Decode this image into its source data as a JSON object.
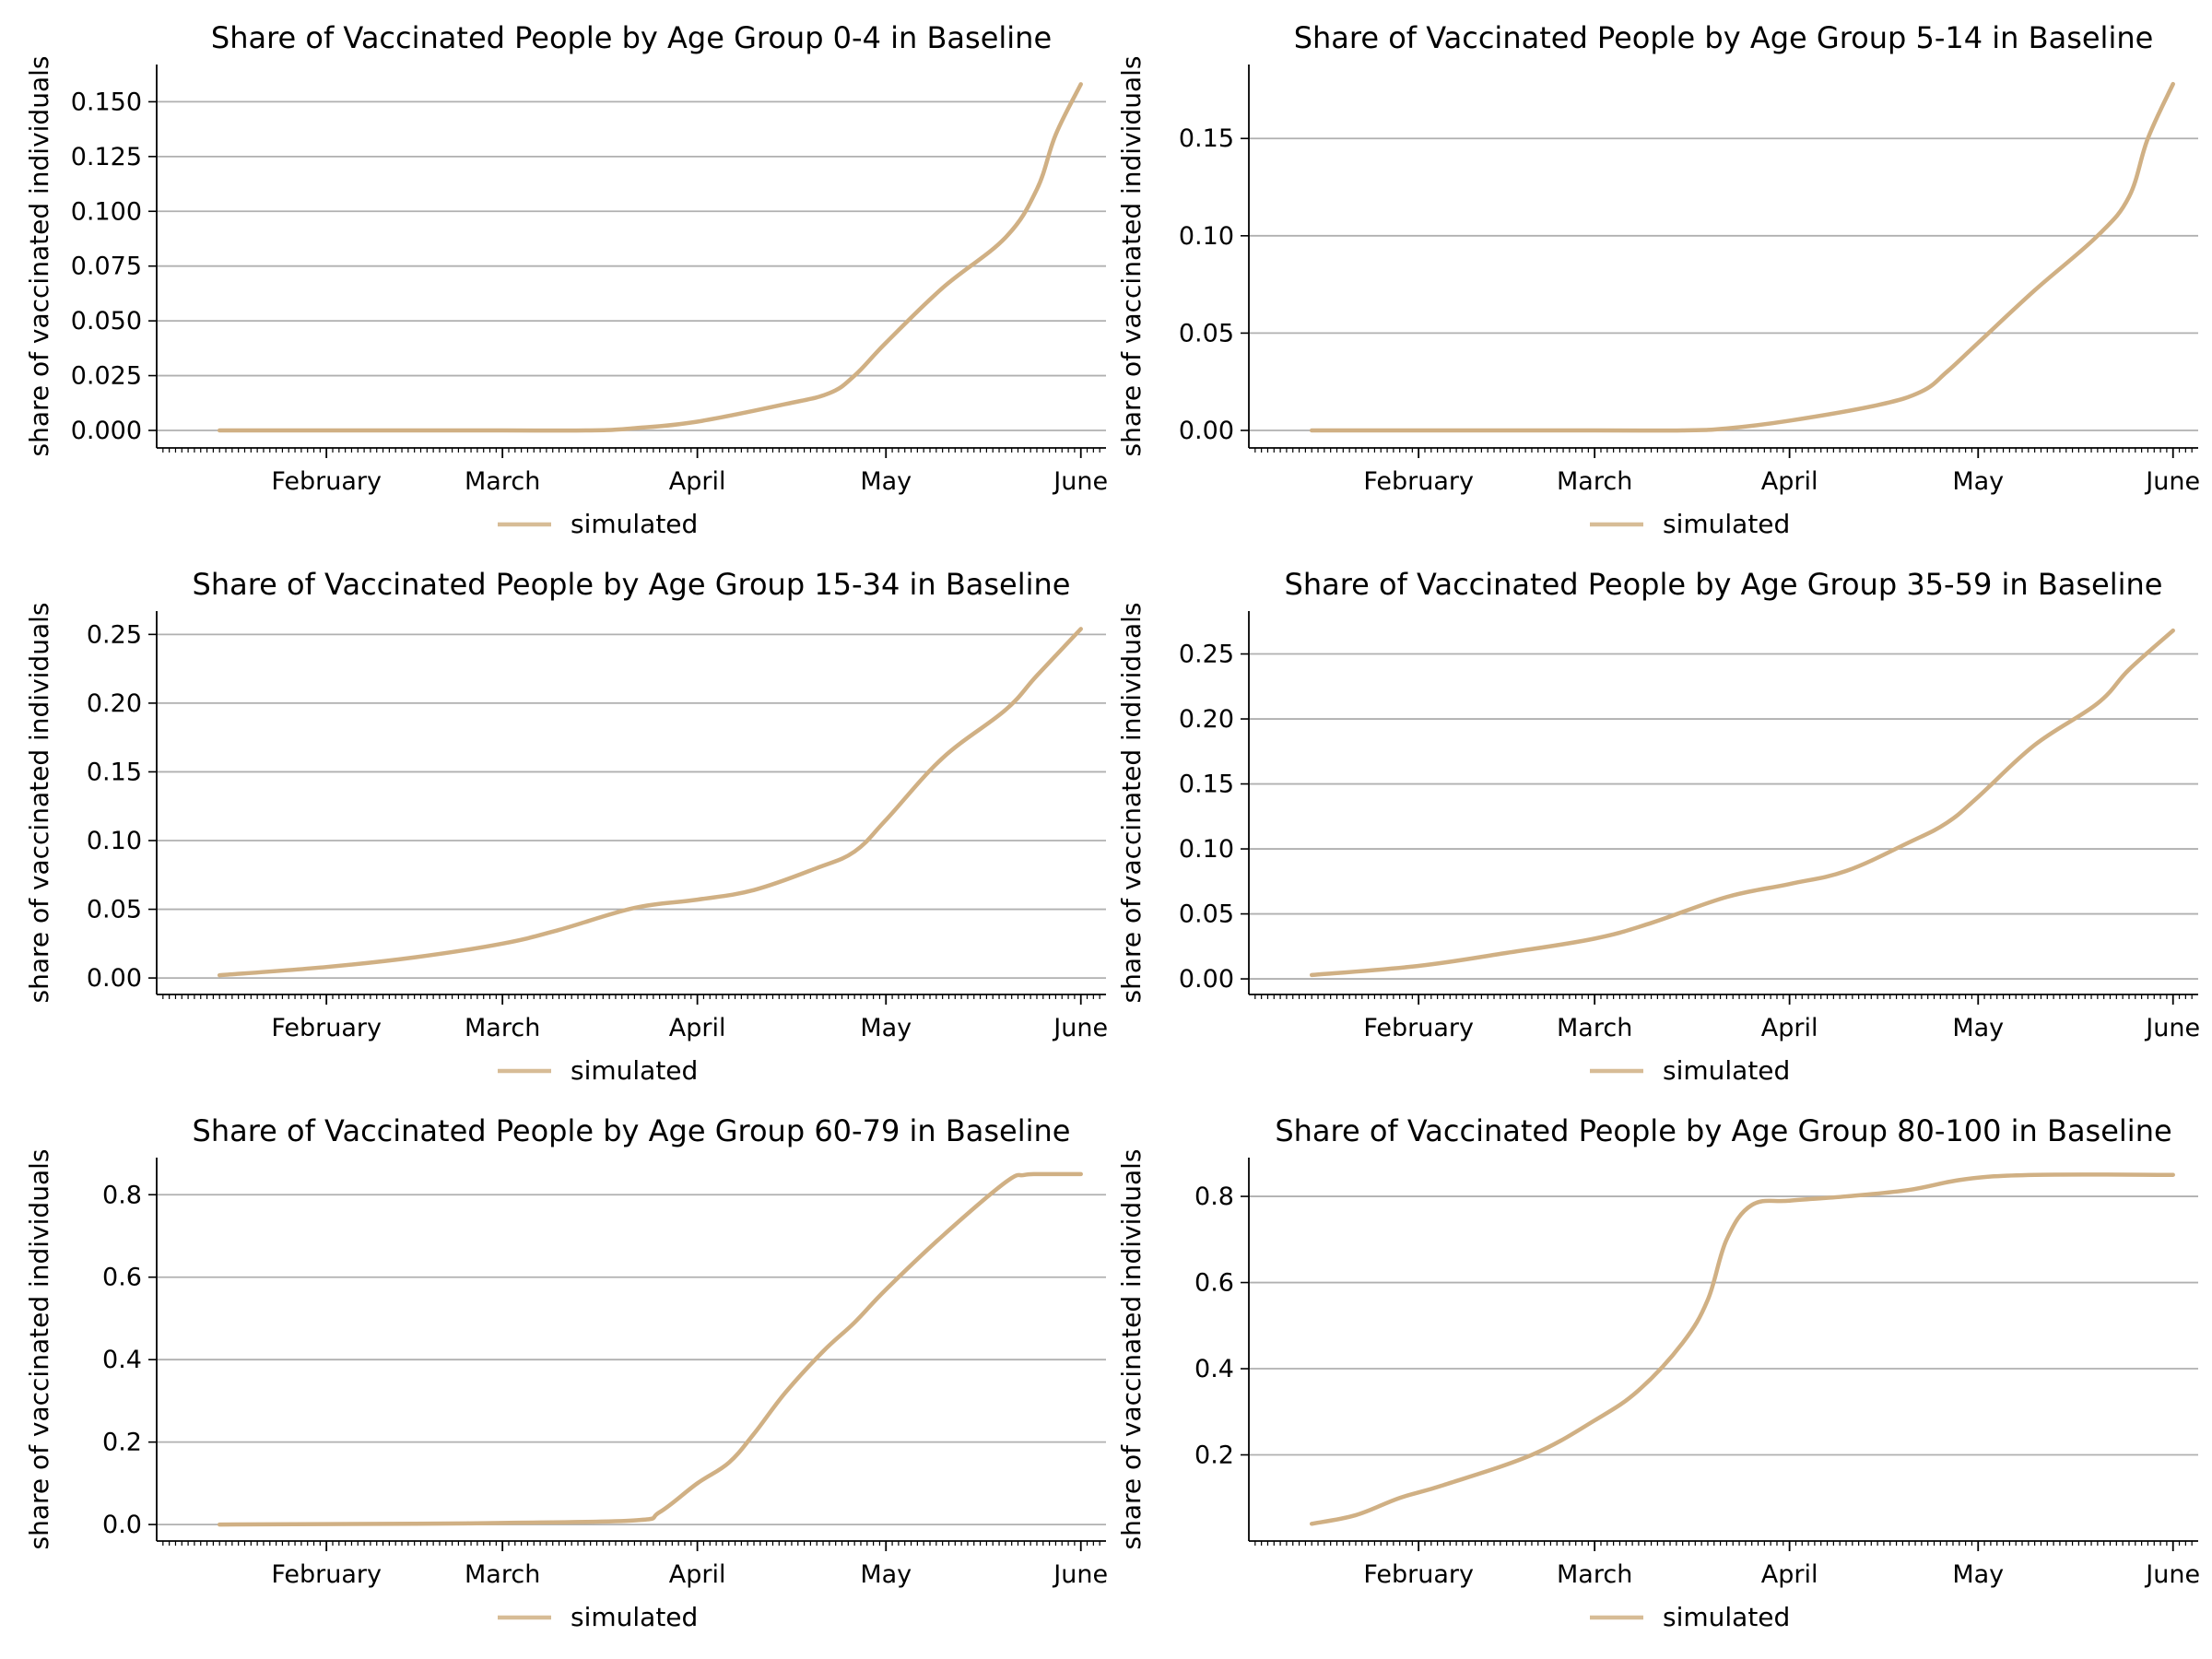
{
  "figure": {
    "layout": "3 rows x 2 columns"
  },
  "chart_data": [
    {
      "type": "line",
      "title": "Share of Vaccinated People by Age Group 0-4 in  Baseline",
      "ylabel": "share of vaccinated individuals",
      "xlabel": "",
      "x_ticks": [
        "February",
        "March",
        "April",
        "May",
        "June"
      ],
      "ylim": [
        -0.008,
        0.167
      ],
      "y_ticks": [
        "0.000",
        "0.025",
        "0.050",
        "0.075",
        "0.100",
        "0.125",
        "0.150"
      ],
      "grid": "horizontal",
      "legend": "bottom-center",
      "series": [
        {
          "name": "simulated",
          "color": "#d0b084",
          "x": [
            "Jan 15",
            "Feb 1",
            "Mar 1",
            "Mar 15",
            "Mar 22",
            "Apr 1",
            "Apr 15",
            "Apr 22",
            "Apr 26",
            "May 1",
            "May 10",
            "May 20",
            "May 25",
            "May 28",
            "Jun 1"
          ],
          "y": [
            0,
            0,
            0,
            0,
            0.001,
            0.004,
            0.012,
            0.017,
            0.025,
            0.04,
            0.065,
            0.088,
            0.11,
            0.135,
            0.158
          ]
        }
      ]
    },
    {
      "type": "line",
      "title": "Share of Vaccinated People by Age Group 5-14 in  Baseline",
      "ylabel": "share of vaccinated individuals",
      "xlabel": "",
      "x_ticks": [
        "February",
        "March",
        "April",
        "May",
        "June"
      ],
      "ylim": [
        -0.009,
        0.188
      ],
      "y_ticks": [
        "0.00",
        "0.05",
        "0.10",
        "0.15"
      ],
      "grid": "horizontal",
      "legend": "bottom-center",
      "series": [
        {
          "name": "simulated",
          "color": "#d0b084",
          "x": [
            "Jan 15",
            "Feb 1",
            "Mar 1",
            "Mar 15",
            "Mar 22",
            "Apr 1",
            "Apr 15",
            "Apr 22",
            "Apr 26",
            "May 1",
            "May 10",
            "May 20",
            "May 25",
            "May 28",
            "Jun 1"
          ],
          "y": [
            0,
            0,
            0,
            0,
            0.001,
            0.005,
            0.013,
            0.02,
            0.03,
            0.045,
            0.072,
            0.1,
            0.12,
            0.15,
            0.178
          ]
        }
      ]
    },
    {
      "type": "line",
      "title": "Share of Vaccinated People by Age Group 15-34 in  Baseline",
      "ylabel": "share of vaccinated individuals",
      "xlabel": "",
      "x_ticks": [
        "February",
        "March",
        "April",
        "May",
        "June"
      ],
      "ylim": [
        -0.012,
        0.267
      ],
      "y_ticks": [
        "0.00",
        "0.05",
        "0.10",
        "0.15",
        "0.20",
        "0.25"
      ],
      "grid": "horizontal",
      "legend": "bottom-center",
      "series": [
        {
          "name": "simulated",
          "color": "#d0b084",
          "x": [
            "Jan 15",
            "Feb 1",
            "Feb 15",
            "Mar 1",
            "Mar 10",
            "Mar 22",
            "Apr 1",
            "Apr 10",
            "Apr 20",
            "Apr 26",
            "May 1",
            "May 10",
            "May 20",
            "May 25",
            "Jun 1"
          ],
          "y": [
            0.002,
            0.008,
            0.015,
            0.025,
            0.035,
            0.051,
            0.057,
            0.064,
            0.08,
            0.092,
            0.115,
            0.16,
            0.195,
            0.22,
            0.254
          ]
        }
      ]
    },
    {
      "type": "line",
      "title": "Share of Vaccinated People by Age Group 35-59 in  Baseline",
      "ylabel": "share of vaccinated individuals",
      "xlabel": "",
      "x_ticks": [
        "February",
        "March",
        "April",
        "May",
        "June"
      ],
      "ylim": [
        -0.012,
        0.283
      ],
      "y_ticks": [
        "0.00",
        "0.05",
        "0.10",
        "0.15",
        "0.20",
        "0.25"
      ],
      "grid": "horizontal",
      "legend": "bottom-center",
      "series": [
        {
          "name": "simulated",
          "color": "#d0b084",
          "x": [
            "Jan 15",
            "Feb 1",
            "Feb 15",
            "Mar 1",
            "Mar 10",
            "Mar 22",
            "Apr 1",
            "Apr 10",
            "Apr 20",
            "Apr 26",
            "May 1",
            "May 10",
            "May 20",
            "May 25",
            "Jun 1"
          ],
          "y": [
            0.003,
            0.01,
            0.02,
            0.031,
            0.043,
            0.063,
            0.073,
            0.083,
            0.105,
            0.12,
            0.14,
            0.18,
            0.212,
            0.238,
            0.268
          ]
        }
      ]
    },
    {
      "type": "line",
      "title": "Share of Vaccinated People by Age Group 60-79 in  Baseline",
      "ylabel": "share of vaccinated individuals",
      "xlabel": "",
      "x_ticks": [
        "February",
        "March",
        "April",
        "May",
        "June"
      ],
      "ylim": [
        -0.04,
        0.89
      ],
      "y_ticks": [
        "0.0",
        "0.2",
        "0.4",
        "0.6",
        "0.8"
      ],
      "grid": "horizontal",
      "legend": "bottom-center",
      "series": [
        {
          "name": "simulated",
          "color": "#d0b084",
          "x": [
            "Jan 15",
            "Feb 15",
            "Mar 1",
            "Mar 22",
            "Mar 26",
            "Apr 1",
            "Apr 6",
            "Apr 10",
            "Apr 15",
            "Apr 21",
            "Apr 26",
            "May 1",
            "May 10",
            "May 20",
            "May 23",
            "May 26",
            "Jun 1"
          ],
          "y": [
            0,
            0.002,
            0.004,
            0.01,
            0.03,
            0.1,
            0.15,
            0.22,
            0.32,
            0.42,
            0.49,
            0.57,
            0.7,
            0.83,
            0.848,
            0.85,
            0.85
          ]
        }
      ]
    },
    {
      "type": "line",
      "title": "Share of Vaccinated People by Age Group 80-100 in  Baseline",
      "ylabel": "share of vaccinated individuals",
      "xlabel": "",
      "x_ticks": [
        "February",
        "March",
        "April",
        "May",
        "June"
      ],
      "ylim": [
        0.0,
        0.89
      ],
      "y_ticks": [
        "0.2",
        "0.4",
        "0.6",
        "0.8"
      ],
      "grid": "horizontal",
      "legend": "bottom-center",
      "series": [
        {
          "name": "simulated",
          "color": "#d0b084",
          "x": [
            "Jan 15",
            "Jan 22",
            "Jan 29",
            "Feb 5",
            "Feb 19",
            "Mar 1",
            "Mar 8",
            "Mar 15",
            "Mar 19",
            "Mar 22",
            "Mar 26",
            "Apr 1",
            "Apr 10",
            "Apr 20",
            "Apr 29",
            "May 10",
            "Jun 1"
          ],
          "y": [
            0.04,
            0.06,
            0.1,
            0.13,
            0.2,
            0.28,
            0.35,
            0.46,
            0.56,
            0.7,
            0.78,
            0.79,
            0.8,
            0.815,
            0.84,
            0.85,
            0.85
          ]
        }
      ]
    }
  ]
}
